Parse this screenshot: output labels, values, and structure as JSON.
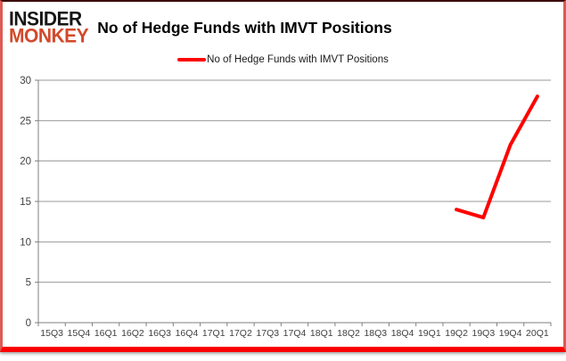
{
  "brand": {
    "line1": "INSIDER",
    "line2": "MONKEY",
    "insider_color": "#161616",
    "monkey_color": "#d2492a"
  },
  "title": "No of Hedge Funds with IMVT Positions",
  "legend": {
    "label": "No of Hedge Funds with IMVT Positions",
    "marker_color": "#ff0000"
  },
  "chart_data": {
    "type": "line",
    "title": "No of Hedge Funds with IMVT Positions",
    "categories": [
      "15Q3",
      "15Q4",
      "16Q1",
      "16Q2",
      "16Q3",
      "16Q4",
      "17Q1",
      "17Q2",
      "17Q3",
      "17Q4",
      "18Q1",
      "18Q2",
      "18Q3",
      "18Q4",
      "19Q1",
      "19Q2",
      "19Q3",
      "19Q4",
      "20Q1"
    ],
    "series": [
      {
        "name": "No of Hedge Funds with IMVT Positions",
        "color": "#ff0000",
        "values": [
          null,
          null,
          null,
          null,
          null,
          null,
          null,
          null,
          null,
          null,
          null,
          null,
          null,
          null,
          null,
          14,
          13,
          22,
          28
        ]
      }
    ],
    "xlabel": "",
    "ylabel": "",
    "ylim": [
      0,
      30
    ],
    "ytick_step": 5,
    "grid": true,
    "legend_position": "top-center",
    "gridline_color": "#9a9a9a",
    "axis_color": "#7f7f7f",
    "tick_label_color": "#404040"
  },
  "frame": {
    "top_border_color": "#3a0202",
    "side_border_color": "#dd5a52",
    "bottom_bar_color": "#fb0000"
  }
}
